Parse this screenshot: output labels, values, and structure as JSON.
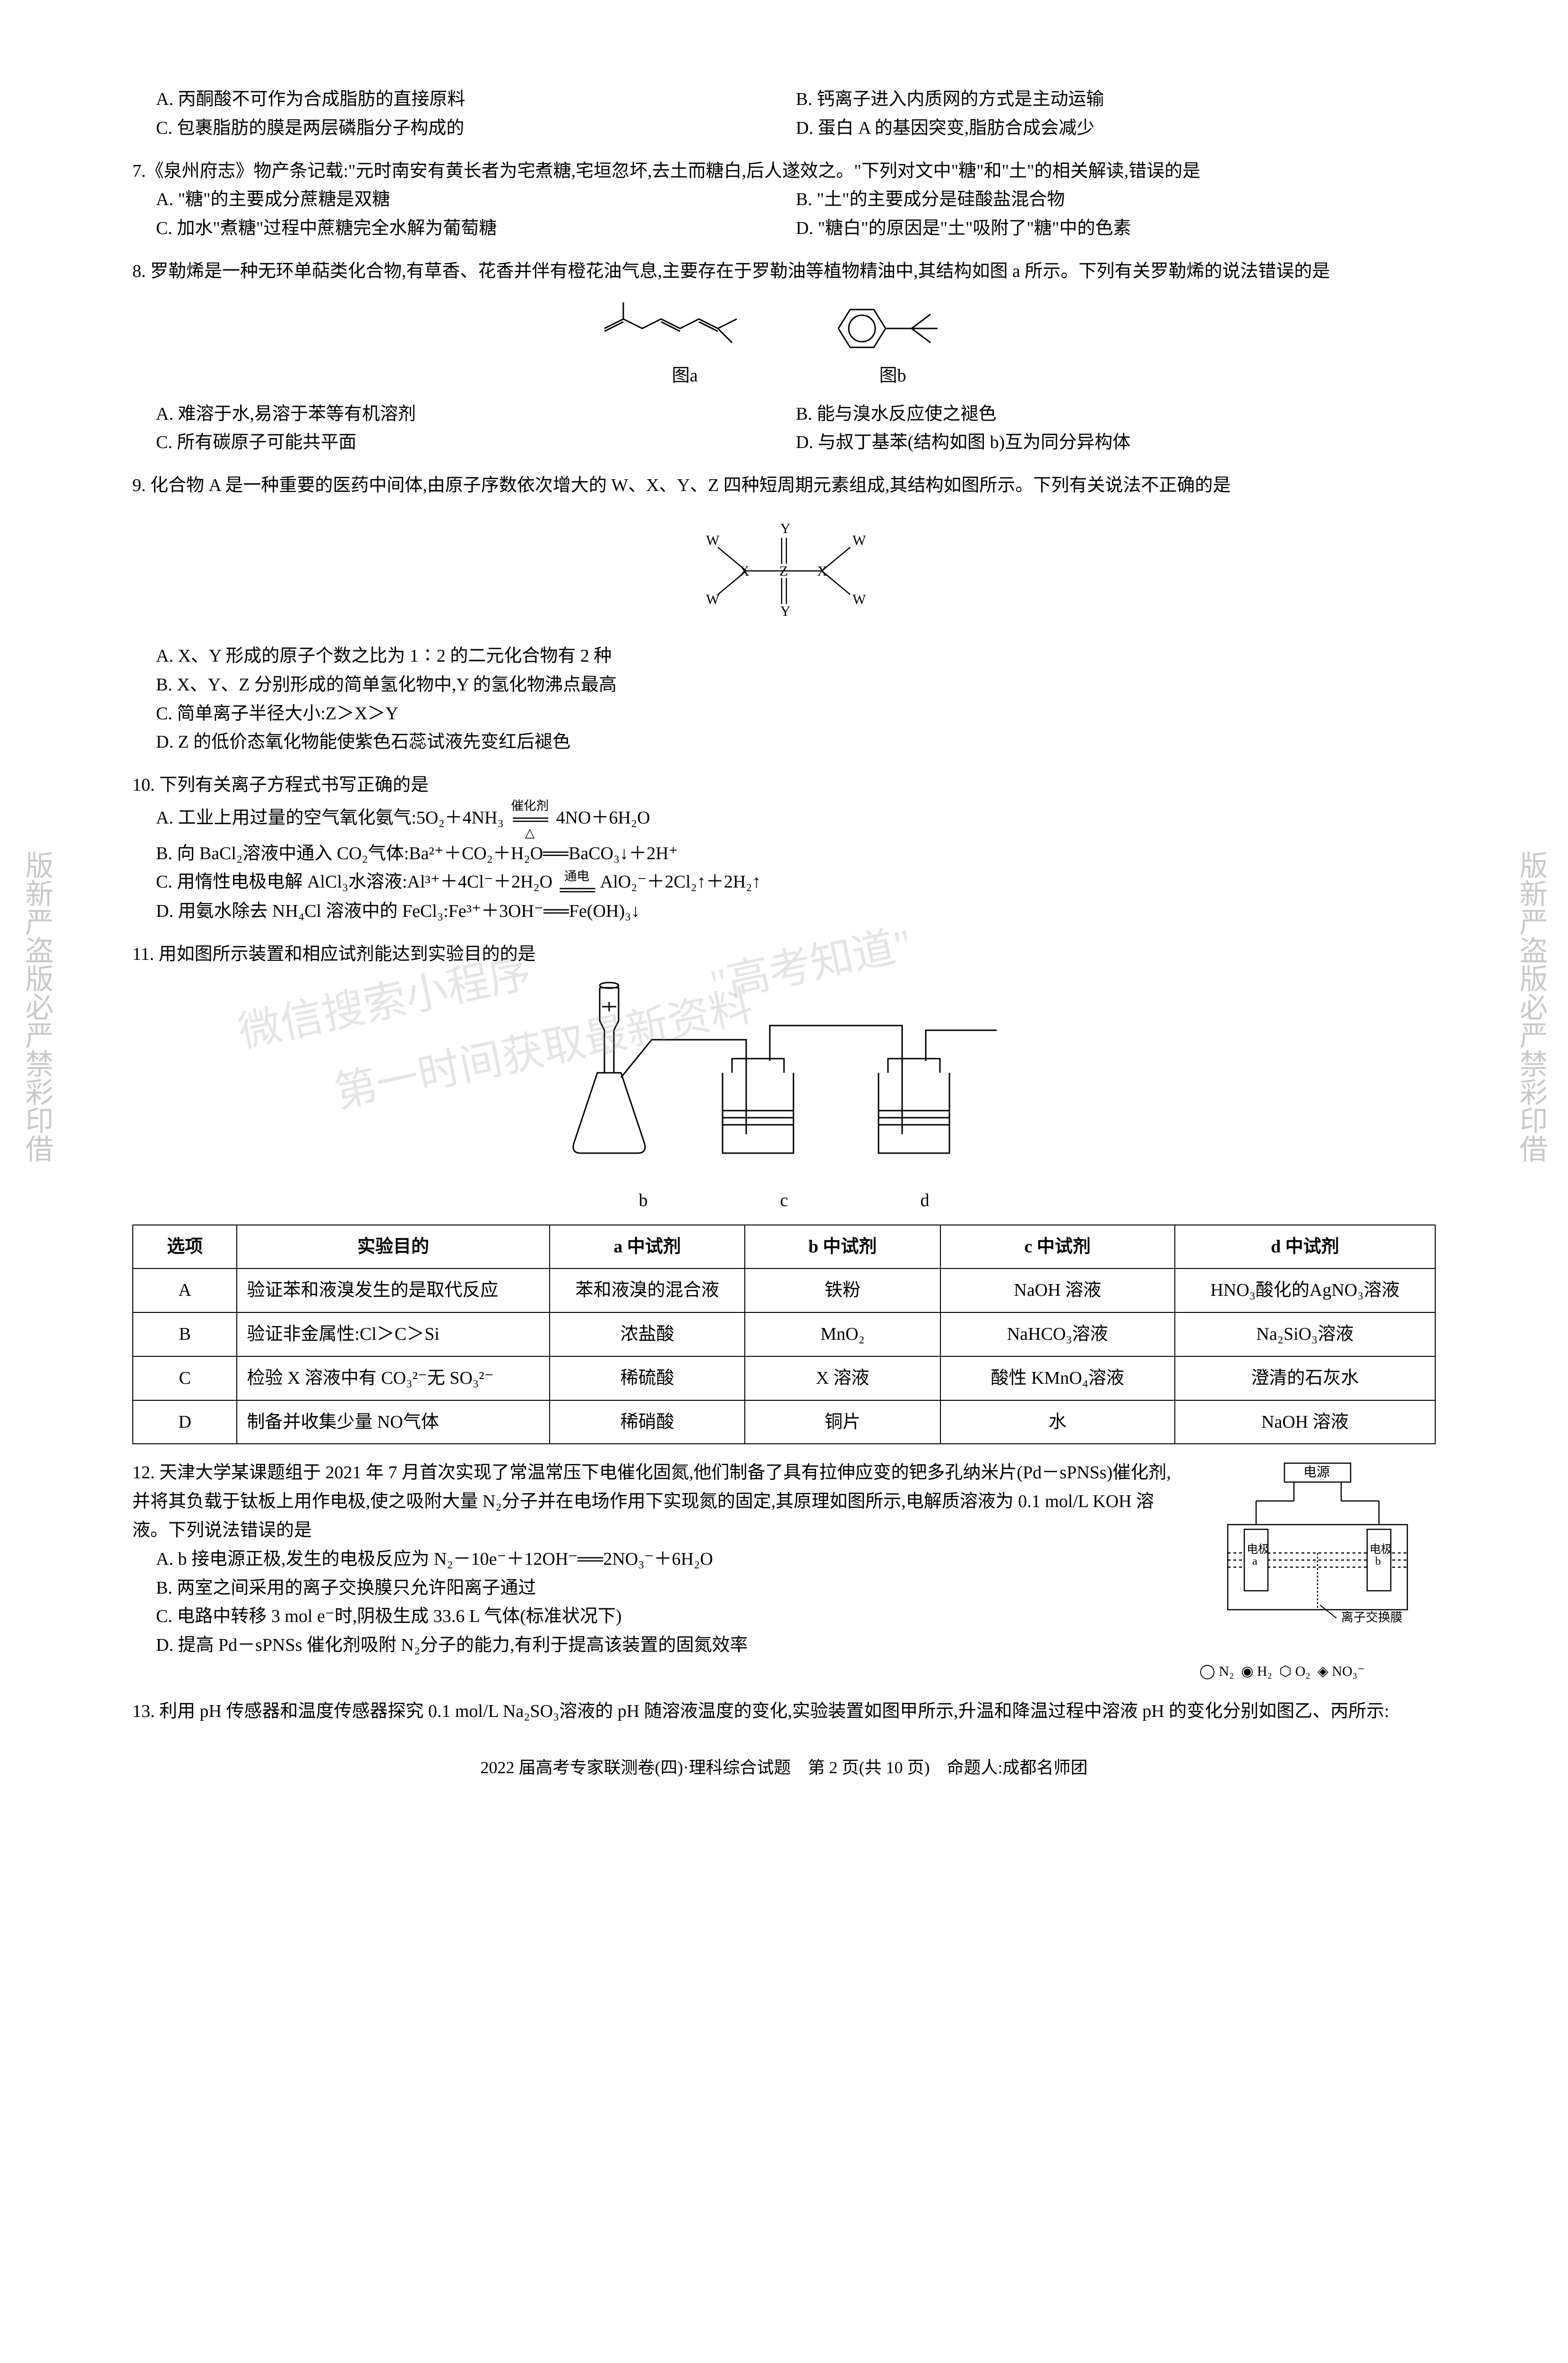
{
  "q6_options": {
    "A": "A. 丙酮酸不可作为合成脂肪的直接原料",
    "B": "B. 钙离子进入内质网的方式是主动运输",
    "C": "C. 包裹脂肪的膜是两层磷脂分子构成的",
    "D": "D. 蛋白 A 的基因突变,脂肪合成会减少"
  },
  "q7": {
    "stem": "7.《泉州府志》物产条记载:\"元时南安有黄长者为宅煮糖,宅垣忽坏,去土而糖白,后人遂效之。\"下列对文中\"糖\"和\"土\"的相关解读,错误的是",
    "A": "A. \"糖\"的主要成分蔗糖是双糖",
    "B": "B. \"土\"的主要成分是硅酸盐混合物",
    "C": "C. 加水\"煮糖\"过程中蔗糖完全水解为葡萄糖",
    "D": "D. \"糖白\"的原因是\"土\"吸附了\"糖\"中的色素"
  },
  "q8": {
    "stem": "8. 罗勒烯是一种无环单萜类化合物,有草香、花香并伴有橙花油气息,主要存在于罗勒油等植物精油中,其结构如图 a 所示。下列有关罗勒烯的说法错误的是",
    "label_a": "图a",
    "label_b": "图b",
    "A": "A. 难溶于水,易溶于苯等有机溶剂",
    "B": "B. 能与溴水反应使之褪色",
    "C": "C. 所有碳原子可能共平面",
    "D": "D. 与叔丁基苯(结构如图 b)互为同分异构体"
  },
  "q9": {
    "stem": "9. 化合物 A 是一种重要的医药中间体,由原子序数依次增大的 W、X、Y、Z 四种短周期元素组成,其结构如图所示。下列有关说法不正确的是",
    "A": "A. X、Y 形成的原子个数之比为 1∶2 的二元化合物有 2 种",
    "B": "B. X、Y、Z 分别形成的简单氢化物中,Y 的氢化物沸点最高",
    "C": "C. 简单离子半径大小:Z＞X＞Y",
    "D": "D. Z 的低价态氧化物能使紫色石蕊试液先变红后褪色"
  },
  "q10": {
    "stem": "10. 下列有关离子方程式书写正确的是",
    "A_pre": "A. 工业上用过量的空气氧化氨气:5O₂＋4NH₃",
    "A_arrow_top": "催化剂",
    "A_arrow_bot": "△",
    "A_post": "4NO＋6H₂O",
    "B": "B. 向 BaCl₂溶液中通入 CO₂气体:Ba²⁺＋CO₂＋H₂O══BaCO₃↓＋2H⁺",
    "C_pre": "C. 用惰性电极电解 AlCl₃水溶液:Al³⁺＋4Cl⁻＋2H₂O",
    "C_arrow_top": "通电",
    "C_post": "AlO₂⁻＋2Cl₂↑＋2H₂↑",
    "D": "D. 用氨水除去 NH₄Cl 溶液中的 FeCl₃:Fe³⁺＋3OH⁻══Fe(OH)₃↓"
  },
  "q11": {
    "stem": "11. 用如图所示装置和相应试剂能达到实验目的的是",
    "labels": {
      "b": "b",
      "c": "c",
      "d": "d"
    },
    "headers": [
      "选项",
      "实验目的",
      "a 中试剂",
      "b 中试剂",
      "c 中试剂",
      "d 中试剂"
    ],
    "rows": [
      [
        "A",
        "验证苯和液溴发生的是取代反应",
        "苯和液溴的混合液",
        "铁粉",
        "NaOH 溶液",
        "HNO₃酸化的AgNO₃溶液"
      ],
      [
        "B",
        "验证非金属性:Cl＞C＞Si",
        "浓盐酸",
        "MnO₂",
        "NaHCO₃溶液",
        "Na₂SiO₃溶液"
      ],
      [
        "C",
        "检验 X 溶液中有 CO₃²⁻无 SO₃²⁻",
        "稀硫酸",
        "X 溶液",
        "酸性 KMnO₄溶液",
        "澄清的石灰水"
      ],
      [
        "D",
        "制备并收集少量 NO气体",
        "稀硝酸",
        "铜片",
        "水",
        "NaOH 溶液"
      ]
    ],
    "col_widths": [
      "8%",
      "24%",
      "15%",
      "15%",
      "18%",
      "20%"
    ]
  },
  "q12": {
    "stem": "12. 天津大学某课题组于 2021 年 7 月首次实现了常温常压下电催化固氮,他们制备了具有拉伸应变的钯多孔纳米片(Pd－sPNSs)催化剂,并将其负载于钛板上用作电极,使之吸附大量 N₂分子并在电场作用下实现氮的固定,其原理如图所示,电解质溶液为 0.1 mol/L KOH 溶液。下列说法错误的是",
    "A": "A. b 接电源正极,发生的电极反应为 N₂－10e⁻＋12OH⁻══2NO₃⁻＋6H₂O",
    "B": "B. 两室之间采用的离子交换膜只允许阳离子通过",
    "C": "C. 电路中转移 3 mol e⁻时,阴极生成 33.6 L 气体(标准状况下)",
    "D": "D. 提高 Pd－sPNSs 催化剂吸附 N₂分子的能力,有利于提高该装置的固氮效率",
    "diag_labels": {
      "power": "电源",
      "elec_a": "电极a",
      "elec_b": "电极b",
      "membrane": "离子交换膜",
      "legend": [
        "N₂",
        "H₂",
        "O₂",
        "NO₃⁻"
      ]
    }
  },
  "q13": {
    "stem": "13. 利用 pH 传感器和温度传感器探究 0.1 mol/L Na₂SO₃溶液的 pH 随溶液温度的变化,实验装置如图甲所示,升温和降温过程中溶液 pH 的变化分别如图乙、丙所示:"
  },
  "footer": "2022 届高考专家联测卷(四)·理科综合试题　第 2 页(共 10 页)　命题人:成都名师团",
  "watermarks": {
    "w1": "微信搜索小程序",
    "w2": "\"高考知道\"",
    "w3": "第一时间获取最新资料"
  },
  "side_left": "版新严盗版必严禁彩印借",
  "side_right": "版新严盗版必严禁彩印借",
  "colors": {
    "text": "#000000",
    "bg": "#ffffff",
    "border": "#000000",
    "watermark": "rgba(150,150,150,0.25)"
  }
}
